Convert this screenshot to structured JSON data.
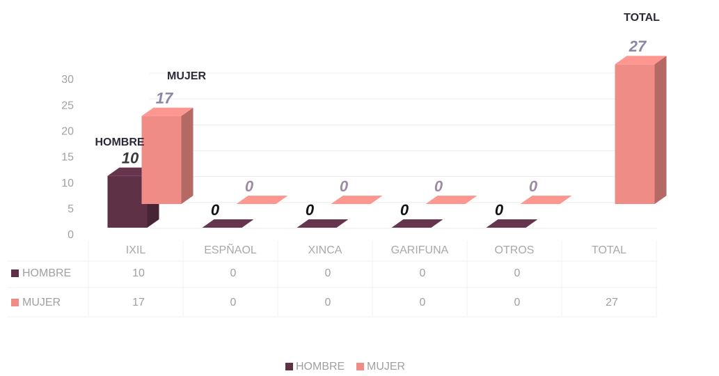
{
  "chart_data": {
    "type": "bar3d",
    "categories": [
      "IXIL",
      "ESPÑAOL",
      "XINCA",
      "GARIFUNA",
      "OTROS",
      "TOTAL"
    ],
    "series": [
      {
        "name": "HOMBRE",
        "color": "#5e3147",
        "values": [
          10,
          0,
          0,
          0,
          0,
          null
        ]
      },
      {
        "name": "MUJER",
        "color": "#f08c86",
        "values": [
          17,
          0,
          0,
          0,
          0,
          27
        ]
      }
    ],
    "annotations": [
      "HOMBRE",
      "MUJER",
      "TOTAL"
    ],
    "ylim": [
      0,
      30
    ],
    "yticks": [
      0,
      5,
      10,
      15,
      20,
      25,
      30
    ],
    "grid": true,
    "legend": "bottom"
  }
}
